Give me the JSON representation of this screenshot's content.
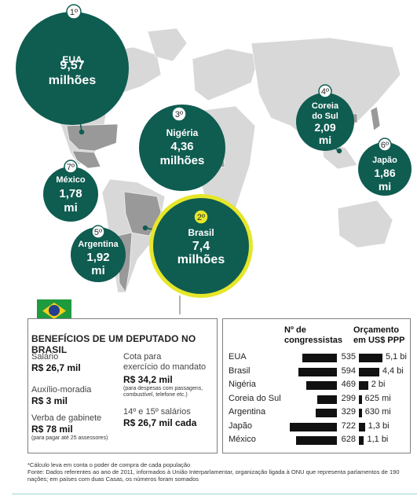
{
  "colors": {
    "bubble": "#0f5c50",
    "highlight": "#e6e62a",
    "map": "#d8d8d8",
    "highlight_country": "#999999"
  },
  "chart_data": [
    {
      "type": "map-bubbles",
      "unit": "US$ PPP",
      "points": [
        {
          "rank": "1º",
          "country": "EUA",
          "value_lines": [
            "9,57",
            "milhões"
          ],
          "value_musd": 9570
        },
        {
          "rank": "2º",
          "country": "Brasil",
          "value_lines": [
            "7,4",
            "milhões"
          ],
          "value_musd": 7400,
          "highlight": true
        },
        {
          "rank": "3º",
          "country": "Nigéria",
          "value_lines": [
            "4,36",
            "milhões"
          ],
          "value_musd": 4360
        },
        {
          "rank": "4º",
          "country": "Coreia do Sul",
          "country_lines": [
            "Coreia",
            "do Sul"
          ],
          "value_lines": [
            "2,09",
            "mi"
          ],
          "value_musd": 2090
        },
        {
          "rank": "5º",
          "country": "Argentina",
          "value_lines": [
            "1,92",
            "mi"
          ],
          "value_musd": 1920
        },
        {
          "rank": "6º",
          "country": "Japão",
          "value_lines": [
            "1,86",
            "mi"
          ],
          "value_musd": 1860
        },
        {
          "rank": "7º",
          "country": "México",
          "value_lines": [
            "1,78",
            "mi"
          ],
          "value_musd": 1780
        }
      ]
    },
    {
      "type": "bar",
      "columns": {
        "members": [
          "Nº de",
          "congressistas"
        ],
        "budget": [
          "Orçamento",
          "em US$ PPP"
        ]
      },
      "rows": [
        {
          "country": "EUA",
          "members": 535,
          "budget": 5.1,
          "budget_label": "5,1 bi"
        },
        {
          "country": "Brasil",
          "members": 594,
          "budget": 4.4,
          "budget_label": "4,4 bi"
        },
        {
          "country": "Nigéria",
          "members": 469,
          "budget": 2.0,
          "budget_label": "2 bi"
        },
        {
          "country": "Coreia do Sul",
          "members": 299,
          "budget": 0.625,
          "budget_label": "625 mi"
        },
        {
          "country": "Argentina",
          "members": 329,
          "budget": 0.63,
          "budget_label": "630 mi"
        },
        {
          "country": "Japão",
          "members": 722,
          "budget": 1.3,
          "budget_label": "1,3 bi"
        },
        {
          "country": "México",
          "members": 628,
          "budget": 1.1,
          "budget_label": "1,1 bi"
        }
      ]
    }
  ],
  "benefits": {
    "title": "BENEFÍCIOS DE UM DEPUTADO NO BRASIL",
    "salary": {
      "label": "Salário",
      "value": "R$ 26,7 mil"
    },
    "housing": {
      "label": "Auxílio-moradia",
      "value": "R$ 3 mil"
    },
    "cabinet": {
      "label": "Verba de gabinete",
      "value": "R$ 78 mil",
      "note": "(para pagar até 25 assessores)"
    },
    "quota": {
      "label_1": "Cota para",
      "label_2": "exercício do mandato",
      "value": "R$ 34,2 mil",
      "note_1": "(para despesas com passagens,",
      "note_2": "combustível, telefone etc.)"
    },
    "bonus": {
      "label": "14º e 15º salários",
      "value": "R$ 26,7 mil cada"
    }
  },
  "footnote": {
    "line_1": "*Cálculo leva em conta o poder de compra de cada população",
    "line_2": "Fonte: Dados referentes ao ano de 2011, informados à União Interparlamentar, organização ligada à ONU que representa parlamentos de 190",
    "line_3": "nações; em países com duas Casas, os números foram somados"
  }
}
